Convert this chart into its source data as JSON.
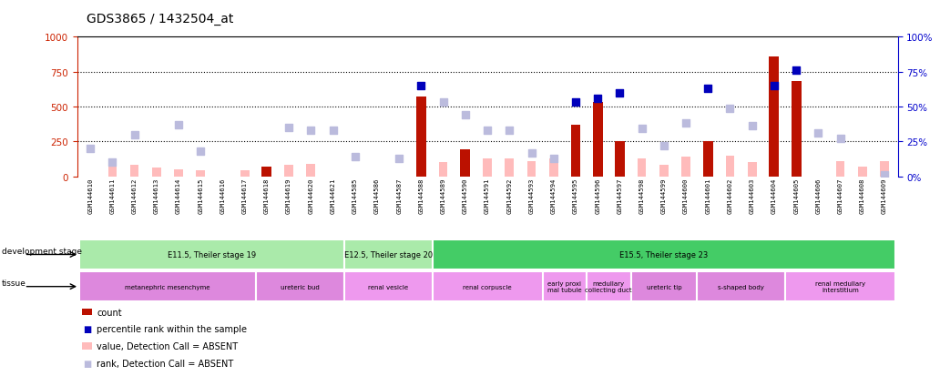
{
  "title": "GDS3865 / 1432504_at",
  "samples": [
    "GSM144610",
    "GSM144611",
    "GSM144612",
    "GSM144613",
    "GSM144614",
    "GSM144615",
    "GSM144616",
    "GSM144617",
    "GSM144618",
    "GSM144619",
    "GSM144620",
    "GSM144621",
    "GSM144585",
    "GSM144586",
    "GSM144587",
    "GSM144588",
    "GSM144589",
    "GSM144590",
    "GSM144591",
    "GSM144592",
    "GSM144593",
    "GSM144594",
    "GSM144595",
    "GSM144596",
    "GSM144597",
    "GSM144598",
    "GSM144599",
    "GSM144600",
    "GSM144601",
    "GSM144602",
    "GSM144603",
    "GSM144604",
    "GSM144605",
    "GSM144606",
    "GSM144607",
    "GSM144608",
    "GSM144609"
  ],
  "count_present": [
    0,
    0,
    0,
    0,
    0,
    0,
    0,
    0,
    70,
    0,
    0,
    0,
    0,
    0,
    0,
    570,
    0,
    190,
    0,
    0,
    0,
    0,
    370,
    530,
    250,
    0,
    0,
    0,
    250,
    0,
    0,
    860,
    680,
    0,
    0,
    0,
    0
  ],
  "value_absent": [
    0,
    90,
    80,
    60,
    50,
    40,
    0,
    40,
    0,
    80,
    90,
    0,
    0,
    0,
    0,
    0,
    100,
    140,
    130,
    130,
    110,
    130,
    0,
    0,
    0,
    130,
    80,
    140,
    0,
    150,
    100,
    0,
    100,
    0,
    110,
    70,
    110
  ],
  "rank_present": [
    0,
    0,
    0,
    0,
    0,
    0,
    0,
    0,
    0,
    0,
    0,
    0,
    0,
    0,
    0,
    650,
    0,
    0,
    0,
    0,
    0,
    0,
    530,
    560,
    600,
    0,
    0,
    0,
    630,
    0,
    0,
    650,
    760,
    0,
    0,
    0,
    0
  ],
  "rank_absent": [
    200,
    100,
    300,
    0,
    370,
    180,
    0,
    0,
    0,
    350,
    330,
    330,
    140,
    0,
    130,
    0,
    530,
    440,
    330,
    330,
    170,
    130,
    0,
    0,
    0,
    340,
    220,
    380,
    0,
    490,
    360,
    0,
    0,
    310,
    270,
    0,
    10
  ],
  "left_color": "#cc2200",
  "right_color": "#0000cc",
  "bar_present_color": "#bb1100",
  "bar_absent_color": "#ffbbbb",
  "sq_present_color": "#0000bb",
  "sq_absent_color": "#bbbbdd",
  "hline_color": "#000000",
  "hline_vals": [
    250,
    500,
    750
  ],
  "yticks_left": [
    0,
    250,
    500,
    750,
    1000
  ],
  "yticks_right": [
    0,
    25,
    50,
    75,
    100
  ],
  "dev_stages": [
    {
      "label": "E11.5, Theiler stage 19",
      "start": 0,
      "end": 11,
      "color": "#aaeaaa"
    },
    {
      "label": "E12.5, Theiler stage 20",
      "start": 12,
      "end": 15,
      "color": "#aaeaaa"
    },
    {
      "label": "E15.5, Theiler stage 23",
      "start": 16,
      "end": 36,
      "color": "#44cc66"
    }
  ],
  "tissues": [
    {
      "label": "metanephric mesenchyme",
      "start": 0,
      "end": 7,
      "color": "#dd88dd"
    },
    {
      "label": "ureteric bud",
      "start": 8,
      "end": 11,
      "color": "#dd88dd"
    },
    {
      "label": "renal vesicle",
      "start": 12,
      "end": 15,
      "color": "#ee99ee"
    },
    {
      "label": "renal corpuscle",
      "start": 16,
      "end": 20,
      "color": "#ee99ee"
    },
    {
      "label": "early proxi\nmal tubule",
      "start": 21,
      "end": 22,
      "color": "#ee99ee"
    },
    {
      "label": "medullary\ncollecting duct",
      "start": 23,
      "end": 24,
      "color": "#ee99ee"
    },
    {
      "label": "ureteric tip",
      "start": 25,
      "end": 27,
      "color": "#dd88dd"
    },
    {
      "label": "s-shaped body",
      "start": 28,
      "end": 31,
      "color": "#dd88dd"
    },
    {
      "label": "renal medullary\ninterstitium",
      "start": 32,
      "end": 36,
      "color": "#ee99ee"
    }
  ],
  "legend_items": [
    {
      "label": "count",
      "color": "#bb1100",
      "type": "rect"
    },
    {
      "label": "percentile rank within the sample",
      "color": "#0000bb",
      "type": "sq"
    },
    {
      "label": "value, Detection Call = ABSENT",
      "color": "#ffbbbb",
      "type": "rect"
    },
    {
      "label": "rank, Detection Call = ABSENT",
      "color": "#bbbbdd",
      "type": "sq"
    }
  ]
}
